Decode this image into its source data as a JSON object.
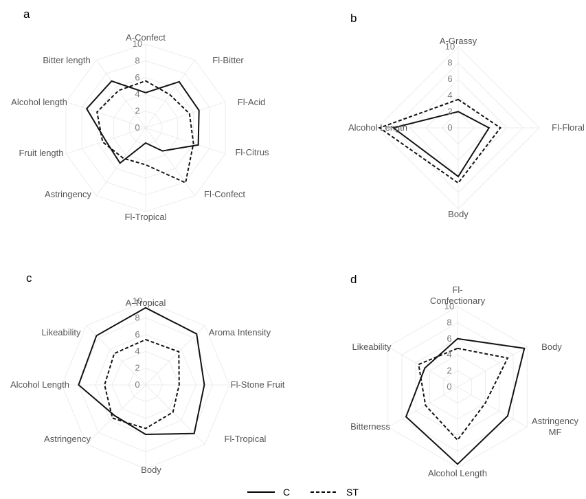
{
  "legend": [
    {
      "name": "C",
      "style": "solid"
    },
    {
      "name": "ST",
      "style": "dashed"
    }
  ],
  "chart_data": [
    {
      "type": "radar",
      "panel": "a",
      "axes": [
        "A-Confect",
        "Fl-Bitter",
        "Fl-Acid",
        "Fl-Citrus",
        "Fl-Confect",
        "Fl-Tropical",
        "Astringency",
        "Fruit length",
        "Alcohol length",
        "Bitter length"
      ],
      "ticks": [
        "0",
        "2",
        "4",
        "6",
        "8",
        "10"
      ],
      "rlim": [
        0,
        10
      ],
      "grid": true,
      "series": [
        {
          "name": "C",
          "values": [
            4.2,
            6.8,
            6.7,
            6.6,
            3.4,
            1.8,
            5.2,
            5.0,
            7.4,
            6.9
          ]
        },
        {
          "name": "ST",
          "values": [
            5.6,
            4.9,
            5.5,
            6.0,
            8.1,
            4.4,
            4.5,
            5.4,
            6.1,
            5.5
          ]
        }
      ]
    },
    {
      "type": "radar",
      "panel": "b",
      "axes": [
        "A-Grassy",
        "Fl-Floral",
        "Body",
        "Alcohol Length"
      ],
      "ticks": [
        "0",
        "2",
        "4",
        "6",
        "8",
        "10"
      ],
      "rlim": [
        0,
        10
      ],
      "grid": true,
      "series": [
        {
          "name": "C",
          "values": [
            2.0,
            3.8,
            6.0,
            8.0
          ]
        },
        {
          "name": "ST",
          "values": [
            3.5,
            5.2,
            6.8,
            9.7
          ]
        }
      ]
    },
    {
      "type": "radar",
      "panel": "c",
      "axes": [
        "A-Tropical",
        "Aroma Intensity",
        "Fl-Stone Fruit",
        "Fl-Tropical",
        "Body",
        "Astringency",
        "Alcohol Length",
        "Likeability"
      ],
      "ticks": [
        "0",
        "2",
        "4",
        "6",
        "8",
        "10"
      ],
      "rlim": [
        0,
        10
      ],
      "grid": true,
      "series": [
        {
          "name": "C",
          "values": [
            9.2,
            8.6,
            7.0,
            8.2,
            5.9,
            5.2,
            8.0,
            8.3
          ]
        },
        {
          "name": "ST",
          "values": [
            5.4,
            5.6,
            4.0,
            4.6,
            5.2,
            5.6,
            4.9,
            5.3
          ]
        }
      ]
    },
    {
      "type": "radar",
      "panel": "d",
      "axes": [
        "Fl-\nConfectionary",
        "Body",
        "Astringency\nMF",
        "Alcohol Length",
        "Bitterness",
        "Likeability"
      ],
      "ticks": [
        "0",
        "2",
        "4",
        "6",
        "8",
        "10"
      ],
      "rlim": [
        0,
        10
      ],
      "grid": true,
      "series": [
        {
          "name": "C",
          "values": [
            6.0,
            9.6,
            7.2,
            9.6,
            7.4,
            4.7
          ]
        },
        {
          "name": "ST",
          "values": [
            4.8,
            7.2,
            4.0,
            6.6,
            4.6,
            5.6
          ]
        }
      ]
    }
  ]
}
